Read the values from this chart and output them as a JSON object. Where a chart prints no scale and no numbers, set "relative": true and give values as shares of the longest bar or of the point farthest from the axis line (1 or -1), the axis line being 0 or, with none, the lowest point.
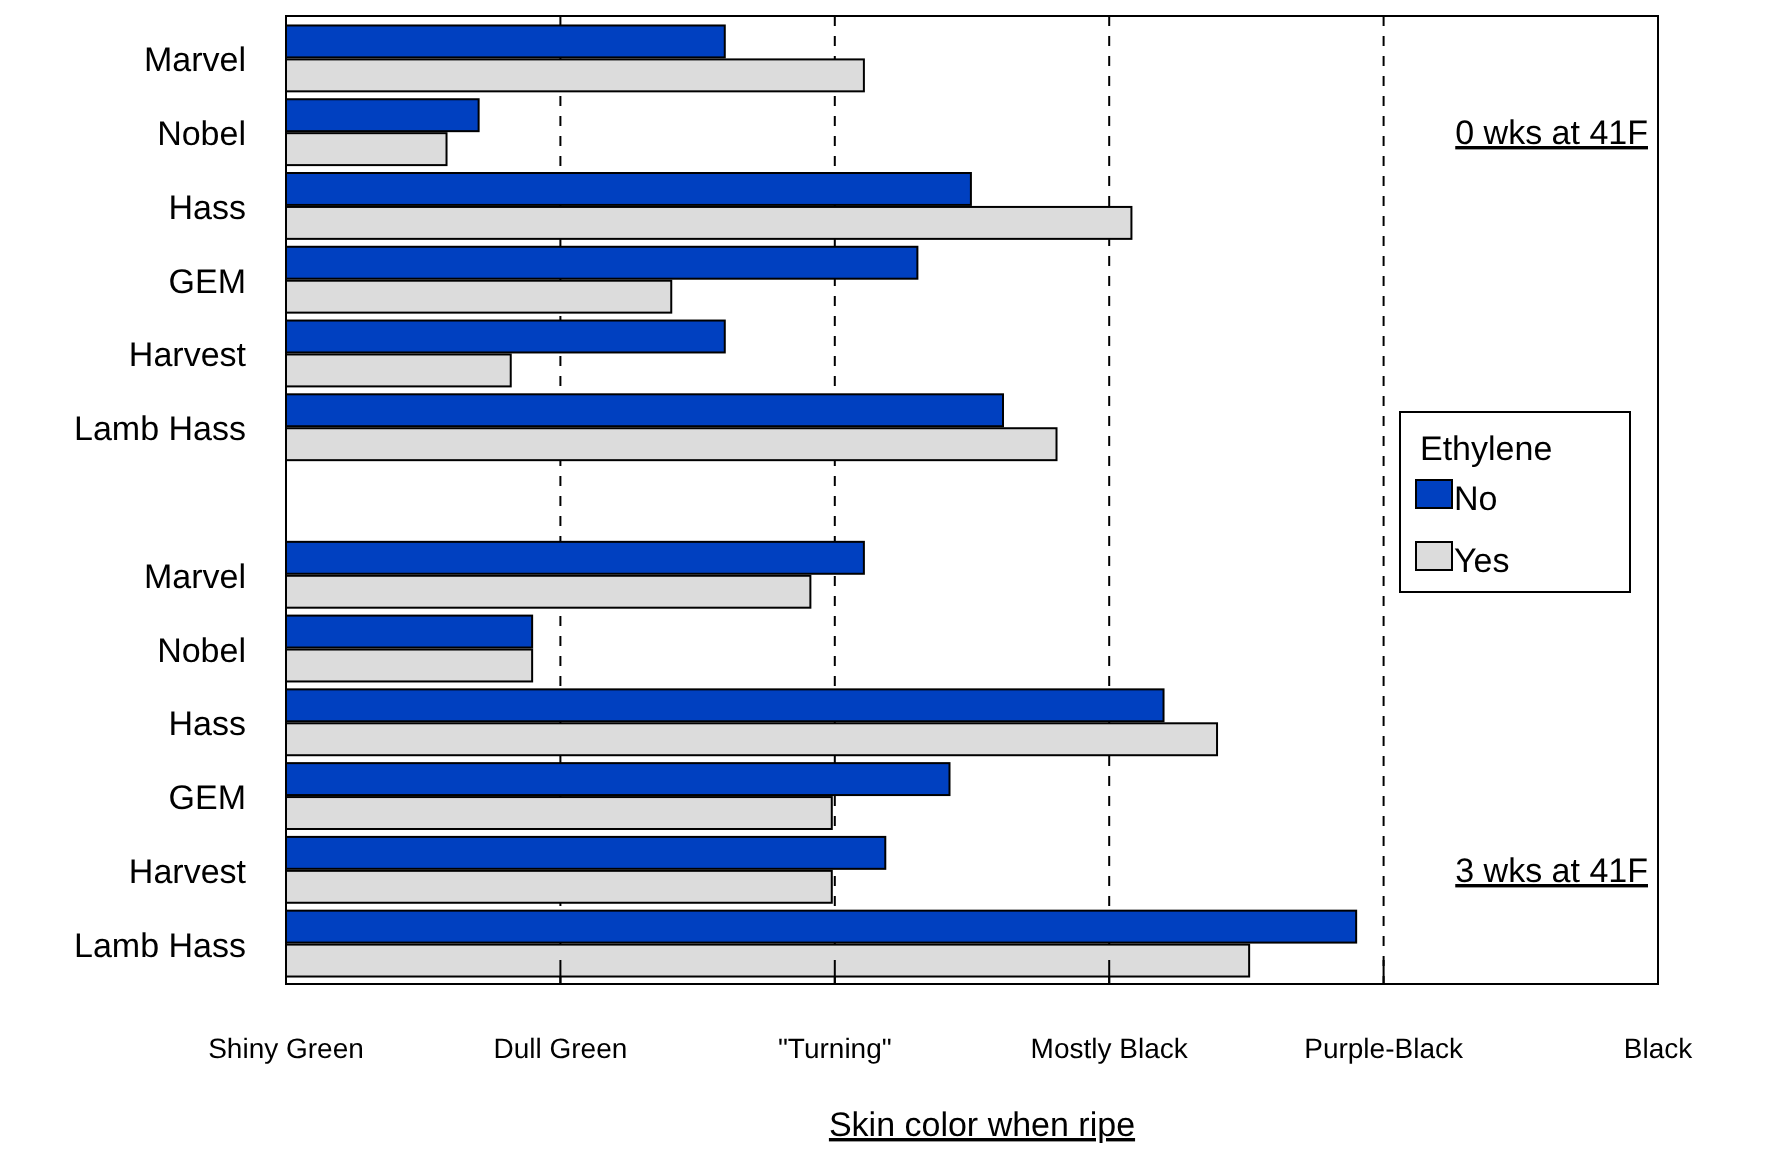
{
  "chart_data": {
    "type": "bar",
    "orientation": "horizontal",
    "relative": true,
    "xlabel": "Skin color when ripe",
    "legend_title": "Ethylene",
    "legend": "right",
    "grid": "x",
    "line_style": "dashed",
    "categories": [
      "Marvel",
      "Nobel",
      "Hass",
      "GEM",
      "Harvest",
      "Lamb Hass",
      null,
      "Marvel",
      "Nobel",
      "Hass",
      "GEM",
      "Harvest",
      "Lamb Hass"
    ],
    "series": [
      {
        "name": "No",
        "color": "#0040c0",
        "values": [
          0.41,
          0.18,
          0.64,
          0.59,
          0.41,
          0.67,
          null,
          0.54,
          0.23,
          0.82,
          0.62,
          0.56,
          1
        ]
      },
      {
        "name": "Yes",
        "color": "#dcdcdc",
        "values": [
          0.54,
          0.15,
          0.79,
          0.36,
          0.21,
          0.72,
          null,
          0.49,
          0.23,
          0.87,
          0.51,
          0.51,
          0.9
        ]
      }
    ],
    "annotations": [
      "0 wks at 41F",
      "3 wks at 41F",
      "Shiny Green",
      "Dull Green",
      "\"Turning\"",
      "Mostly Black",
      "Purple-Black",
      "Black"
    ]
  }
}
